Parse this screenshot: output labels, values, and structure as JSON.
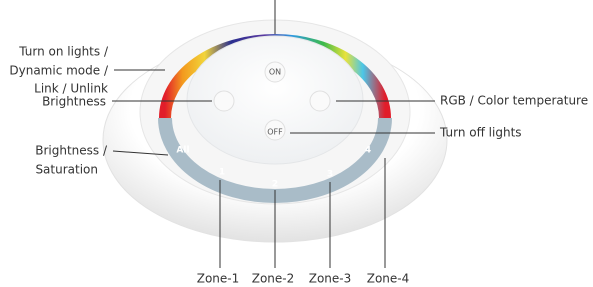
{
  "device": {
    "on": "ON",
    "off": "OFF",
    "all": "All",
    "zones": [
      "1",
      "2",
      "3",
      "4"
    ]
  },
  "labels": {
    "turn_on": [
      "Turn on lights /",
      "Dynamic mode /",
      "Link / Unlink"
    ],
    "brightness": "Brightness",
    "rgb": "RGB / Color temperature",
    "turn_off": "Turn off lights",
    "brightness_saturation": [
      "Brightness /",
      "Saturation"
    ],
    "zones": [
      "Zone-1",
      "Zone-2",
      "Zone-3",
      "Zone-4"
    ]
  }
}
